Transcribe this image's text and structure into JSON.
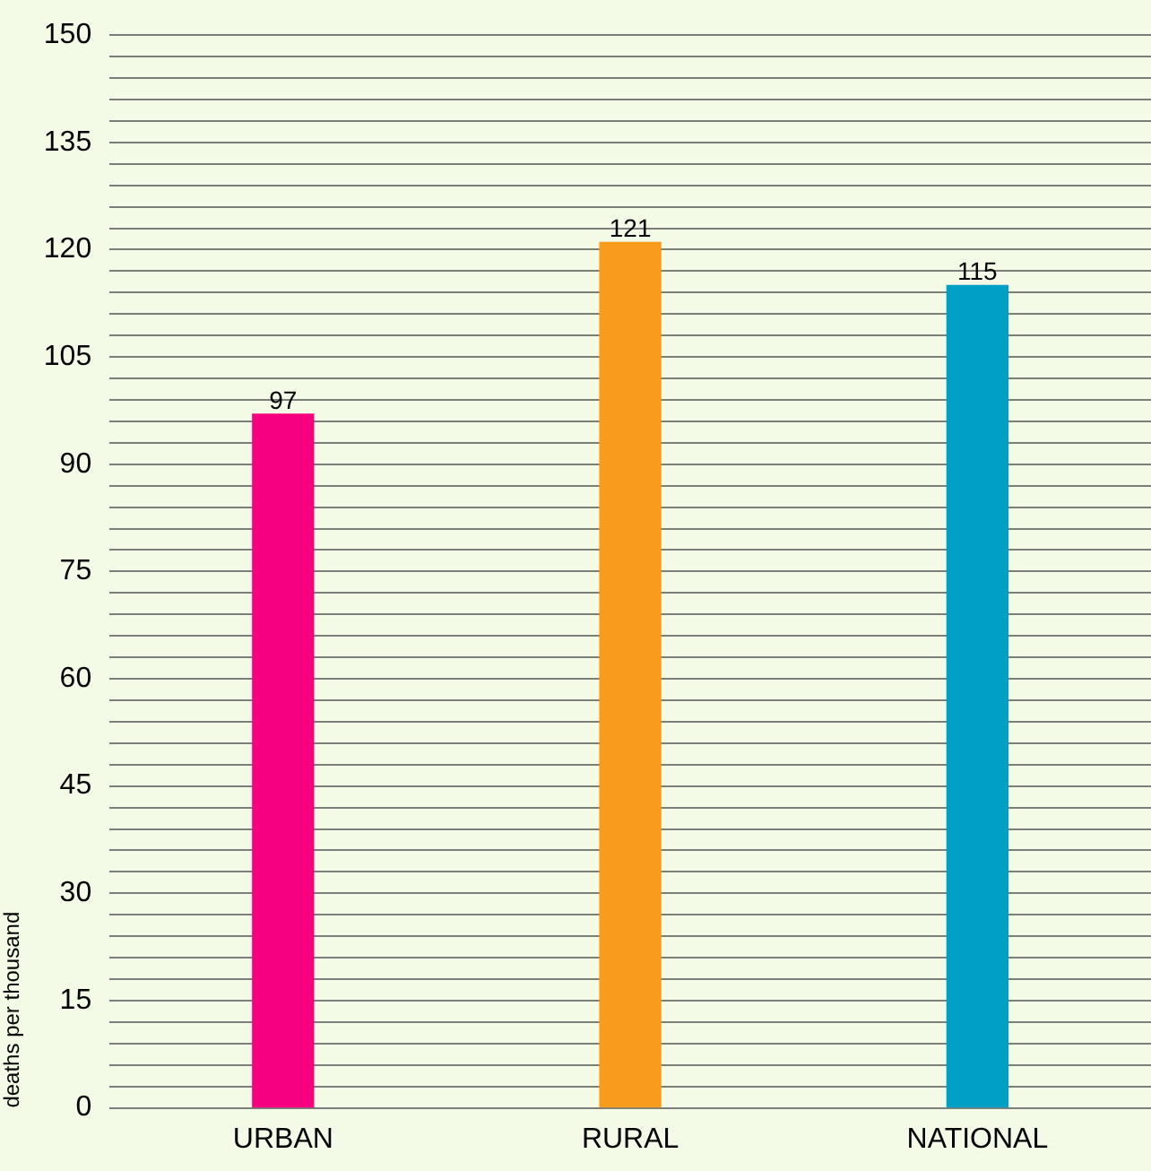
{
  "chart_data": {
    "type": "bar",
    "ylabel": "deaths per thousand",
    "categories": [
      "URBAN",
      "RURAL",
      "NATIONAL"
    ],
    "values": [
      97,
      121,
      115
    ],
    "colors": [
      "#f7007f",
      "#f99b1c",
      "#00a0c6"
    ],
    "ylim": [
      0,
      150
    ],
    "yticks": [
      0,
      {
        "value": 3,
        "label": null
      },
      {
        "value": 6,
        "label": null
      },
      {
        "value": 9,
        "label": null
      },
      {
        "value": 12,
        "label": null
      },
      15,
      {
        "value": 18,
        "label": null
      },
      {
        "value": 21,
        "label": null
      },
      {
        "value": 24,
        "label": null
      },
      {
        "value": 27,
        "label": null
      },
      30,
      {
        "value": 33,
        "label": null
      },
      {
        "value": 36,
        "label": null
      },
      {
        "value": 39,
        "label": null
      },
      {
        "value": 42,
        "label": null
      },
      45,
      {
        "value": 48,
        "label": null
      },
      {
        "value": 51,
        "label": null
      },
      {
        "value": 54,
        "label": null
      },
      {
        "value": 57,
        "label": null
      },
      60,
      {
        "value": 63,
        "label": null
      },
      {
        "value": 66,
        "label": null
      },
      {
        "value": 69,
        "label": null
      },
      {
        "value": 72,
        "label": null
      },
      75,
      {
        "value": 78,
        "label": null
      },
      {
        "value": 81,
        "label": null
      },
      {
        "value": 84,
        "label": null
      },
      {
        "value": 87,
        "label": null
      },
      90,
      {
        "value": 93,
        "label": null
      },
      {
        "value": 96,
        "label": null
      },
      {
        "value": 99,
        "label": null
      },
      {
        "value": 102,
        "label": null
      },
      105,
      {
        "value": 108,
        "label": null
      },
      {
        "value": 111,
        "label": null
      },
      {
        "value": 114,
        "label": null
      },
      {
        "value": 117,
        "label": null
      },
      120,
      {
        "value": 123,
        "label": null
      },
      {
        "value": 126,
        "label": null
      },
      {
        "value": 129,
        "label": null
      },
      {
        "value": 132,
        "label": null
      },
      135,
      {
        "value": 138,
        "label": null
      },
      {
        "value": 141,
        "label": null
      },
      {
        "value": 144,
        "label": null
      },
      {
        "value": 147,
        "label": null
      },
      150
    ],
    "grid": "y",
    "data_labels": true
  }
}
